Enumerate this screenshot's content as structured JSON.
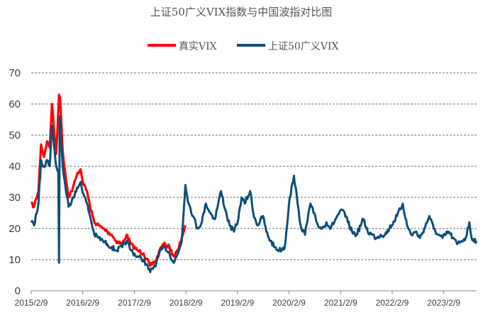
{
  "chart_data": {
    "type": "line",
    "title": "上证50广义VIX指数与中国波指对比图",
    "xlabel": "",
    "ylabel": "",
    "ylim": [
      0,
      70
    ],
    "yticks": [
      0,
      10,
      20,
      30,
      40,
      50,
      60,
      70
    ],
    "xlim": [
      "2015-02-09",
      "2023-09-30"
    ],
    "xtick_labels": [
      "2015/2/9",
      "2016/2/9",
      "2017/2/9",
      "2018/2/9",
      "2019/2/9",
      "2020/2/9",
      "2021/2/9",
      "2022/2/9",
      "2023/2/9"
    ],
    "xtick_dates": [
      "2015-02-09",
      "2016-02-09",
      "2017-02-09",
      "2018-02-09",
      "2019-02-09",
      "2020-02-09",
      "2021-02-09",
      "2022-02-09",
      "2023-02-09"
    ],
    "grid": "horizontal dashed",
    "legend_placement": "top-center",
    "series": [
      {
        "name": "真实VIX",
        "color": "#ff0000",
        "points": [
          [
            "2015-02-09",
            28
          ],
          [
            "2015-03-01",
            27
          ],
          [
            "2015-04-01",
            32
          ],
          [
            "2015-04-20",
            47
          ],
          [
            "2015-05-10",
            43
          ],
          [
            "2015-06-01",
            48
          ],
          [
            "2015-06-20",
            46
          ],
          [
            "2015-07-06",
            60
          ],
          [
            "2015-07-20",
            52
          ],
          [
            "2015-08-05",
            44
          ],
          [
            "2015-08-25",
            63
          ],
          [
            "2015-09-01",
            62
          ],
          [
            "2015-09-20",
            45
          ],
          [
            "2015-10-10",
            37
          ],
          [
            "2015-11-01",
            30
          ],
          [
            "2015-12-01",
            33
          ],
          [
            "2016-01-05",
            38
          ],
          [
            "2016-01-25",
            39
          ],
          [
            "2016-02-15",
            34
          ],
          [
            "2016-03-10",
            32
          ],
          [
            "2016-04-01",
            27
          ],
          [
            "2016-05-01",
            22
          ],
          [
            "2016-06-01",
            21
          ],
          [
            "2016-07-01",
            20
          ],
          [
            "2016-08-01",
            19
          ],
          [
            "2016-09-01",
            18
          ],
          [
            "2016-10-01",
            16
          ],
          [
            "2016-11-15",
            15
          ],
          [
            "2016-12-15",
            18
          ],
          [
            "2017-01-15",
            15
          ],
          [
            "2017-03-01",
            13
          ],
          [
            "2017-04-15",
            12
          ],
          [
            "2017-06-01",
            8
          ],
          [
            "2017-07-15",
            10
          ],
          [
            "2017-08-15",
            14
          ],
          [
            "2017-09-15",
            15
          ],
          [
            "2017-10-15",
            14
          ],
          [
            "2017-11-15",
            11
          ],
          [
            "2017-12-15",
            13
          ],
          [
            "2018-01-10",
            17
          ],
          [
            "2018-02-05",
            21
          ]
        ]
      },
      {
        "name": "上证50广义VIX",
        "color": "#0d4f7a",
        "points": [
          [
            "2015-02-09",
            22
          ],
          [
            "2015-03-01",
            21
          ],
          [
            "2015-04-01",
            28
          ],
          [
            "2015-04-20",
            42
          ],
          [
            "2015-05-10",
            40
          ],
          [
            "2015-06-01",
            42
          ],
          [
            "2015-06-20",
            40
          ],
          [
            "2015-07-06",
            53
          ],
          [
            "2015-07-20",
            47
          ],
          [
            "2015-08-05",
            40
          ],
          [
            "2015-08-20",
            38
          ],
          [
            "2015-08-25",
            9
          ],
          [
            "2015-08-30",
            56
          ],
          [
            "2015-09-20",
            40
          ],
          [
            "2015-10-10",
            33
          ],
          [
            "2015-11-01",
            27
          ],
          [
            "2015-12-01",
            30
          ],
          [
            "2016-01-05",
            33
          ],
          [
            "2016-01-25",
            35
          ],
          [
            "2016-02-15",
            31
          ],
          [
            "2016-03-10",
            28
          ],
          [
            "2016-04-01",
            24
          ],
          [
            "2016-05-01",
            18
          ],
          [
            "2016-06-01",
            17
          ],
          [
            "2016-07-01",
            16
          ],
          [
            "2016-08-01",
            15
          ],
          [
            "2016-09-01",
            14
          ],
          [
            "2016-10-01",
            13
          ],
          [
            "2016-11-15",
            14
          ],
          [
            "2016-12-15",
            16
          ],
          [
            "2017-01-15",
            13
          ],
          [
            "2017-03-01",
            11
          ],
          [
            "2017-04-15",
            10
          ],
          [
            "2017-06-01",
            6
          ],
          [
            "2017-07-15",
            9
          ],
          [
            "2017-08-15",
            13
          ],
          [
            "2017-09-15",
            14
          ],
          [
            "2017-10-15",
            12
          ],
          [
            "2017-11-15",
            9
          ],
          [
            "2017-12-15",
            12
          ],
          [
            "2018-01-10",
            16
          ],
          [
            "2018-02-05",
            34
          ],
          [
            "2018-03-01",
            28
          ],
          [
            "2018-04-01",
            24
          ],
          [
            "2018-05-01",
            20
          ],
          [
            "2018-06-01",
            22
          ],
          [
            "2018-07-01",
            28
          ],
          [
            "2018-08-01",
            25
          ],
          [
            "2018-09-01",
            23
          ],
          [
            "2018-10-15",
            32
          ],
          [
            "2018-11-15",
            26
          ],
          [
            "2018-12-15",
            21
          ],
          [
            "2019-01-15",
            19
          ],
          [
            "2019-02-15",
            23
          ],
          [
            "2019-03-10",
            30
          ],
          [
            "2019-04-01",
            28
          ],
          [
            "2019-05-10",
            32
          ],
          [
            "2019-06-01",
            25
          ],
          [
            "2019-07-01",
            21
          ],
          [
            "2019-08-10",
            24
          ],
          [
            "2019-09-01",
            19
          ],
          [
            "2019-10-01",
            16
          ],
          [
            "2019-11-01",
            14
          ],
          [
            "2019-12-01",
            13
          ],
          [
            "2020-01-10",
            14
          ],
          [
            "2020-02-09",
            28
          ],
          [
            "2020-03-15",
            37
          ],
          [
            "2020-04-10",
            28
          ],
          [
            "2020-05-01",
            21
          ],
          [
            "2020-06-01",
            18
          ],
          [
            "2020-07-10",
            28
          ],
          [
            "2020-08-01",
            25
          ],
          [
            "2020-09-01",
            21
          ],
          [
            "2020-10-01",
            20
          ],
          [
            "2020-11-01",
            22
          ],
          [
            "2020-12-01",
            20
          ],
          [
            "2021-01-15",
            24
          ],
          [
            "2021-02-25",
            26
          ],
          [
            "2021-04-01",
            22
          ],
          [
            "2021-05-01",
            19
          ],
          [
            "2021-06-01",
            18
          ],
          [
            "2021-07-20",
            23
          ],
          [
            "2021-08-20",
            19
          ],
          [
            "2021-09-20",
            18
          ],
          [
            "2021-10-20",
            17
          ],
          [
            "2021-11-20",
            18
          ],
          [
            "2021-12-20",
            18
          ],
          [
            "2022-01-20",
            20
          ],
          [
            "2022-03-15",
            24
          ],
          [
            "2022-04-25",
            28
          ],
          [
            "2022-05-25",
            21
          ],
          [
            "2022-06-25",
            18
          ],
          [
            "2022-07-25",
            19
          ],
          [
            "2022-08-25",
            17
          ],
          [
            "2022-09-25",
            20
          ],
          [
            "2022-10-30",
            24
          ],
          [
            "2022-11-30",
            20
          ],
          [
            "2022-12-30",
            18
          ],
          [
            "2023-02-01",
            17
          ],
          [
            "2023-03-15",
            19
          ],
          [
            "2023-04-15",
            17
          ],
          [
            "2023-05-15",
            15
          ],
          [
            "2023-06-15",
            16
          ],
          [
            "2023-07-15",
            17
          ],
          [
            "2023-08-10",
            22
          ],
          [
            "2023-08-25",
            17
          ],
          [
            "2023-09-30",
            16
          ]
        ]
      }
    ]
  }
}
